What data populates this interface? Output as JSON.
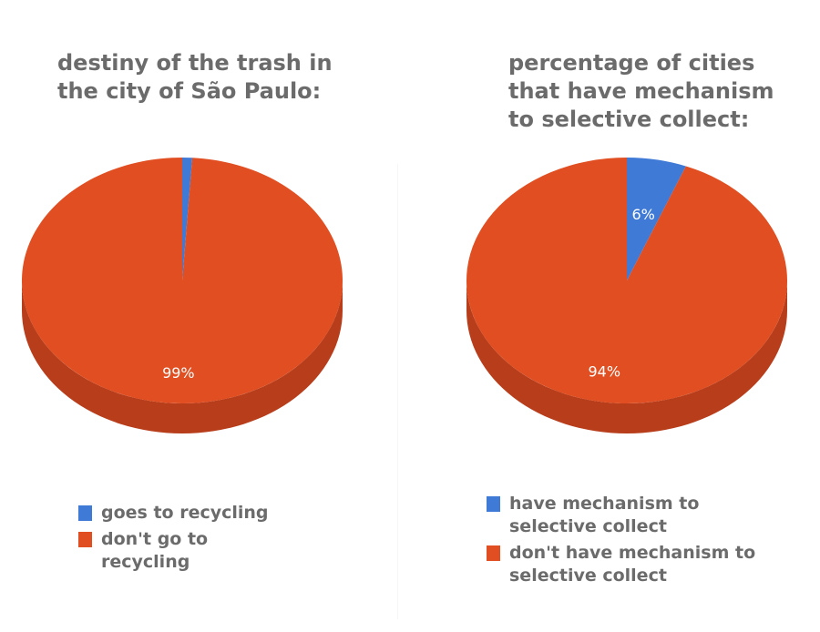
{
  "chart_data": [
    {
      "type": "pie",
      "title": "destiny of the trash in the city of São Paulo:",
      "slices": [
        {
          "label": "goes to recycling",
          "value": 1,
          "color": "#3f7ad6"
        },
        {
          "label": "don't go to recycling",
          "value": 99,
          "color": "#e04e21"
        }
      ],
      "data_labels": [
        "",
        "99%"
      ],
      "legend_position": "bottom"
    },
    {
      "type": "pie",
      "title": "percentage of cities that have mechanism to selective collect:",
      "slices": [
        {
          "label": "have mechanism to selective collect",
          "value": 6,
          "color": "#3f7ad6"
        },
        {
          "label": "don't have mechanism to selective collect",
          "value": 94,
          "color": "#e04e21"
        }
      ],
      "data_labels": [
        "6%",
        "94%"
      ],
      "legend_position": "bottom"
    }
  ],
  "side_color": "#b73d1b"
}
